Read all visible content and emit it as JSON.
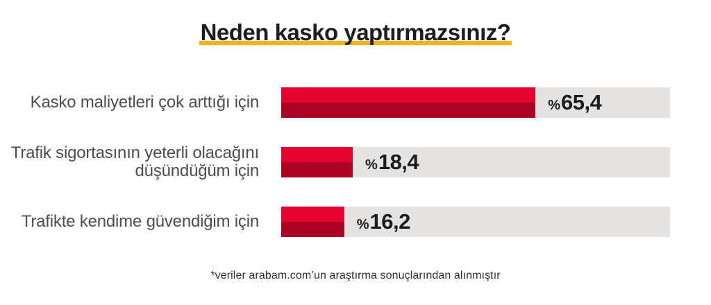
{
  "title": "Neden kasko yaptırmazsınız?",
  "footnote": "*veriler arabam.com’un araştırma sonuçlarından alınmıştır",
  "colors": {
    "bar-top": "#e40230",
    "bar-bottom": "#ab0226",
    "track": "#e4e3e1",
    "underline": "#f0b414",
    "title-color": "#1d1d1b",
    "label-color": "#4c4d4f",
    "value-color": "#1c1c1e",
    "footnote-color": "#2e2e2e",
    "bg": "#ffffff"
  },
  "bars": [
    {
      "label": "Kasko maliyetleri çok arttığı için",
      "percent": 65.4,
      "value_prefix": "%",
      "value_text": "65,4"
    },
    {
      "label": "Trafik sigortasının yeterli olacağını\ndüşündüğüm için",
      "percent": 18.4,
      "value_prefix": "%",
      "value_text": "18,4"
    },
    {
      "label": "Trafikte kendime güvendiğim için",
      "percent": 16.2,
      "value_prefix": "%",
      "value_text": "16,2"
    }
  ],
  "chart_data": {
    "type": "bar",
    "orientation": "horizontal",
    "title": "Neden kasko yaptırmazsınız?",
    "categories": [
      "Kasko maliyetleri çok arttığı için",
      "Trafik sigortasının yeterli olacağını düşündüğüm için",
      "Trafikte kendime güvendiğim için"
    ],
    "values": [
      65.4,
      18.4,
      16.2
    ],
    "value_labels": [
      "%65,4",
      "%18,4",
      "%16,2"
    ],
    "unit": "percent",
    "xlim": [
      0,
      100
    ],
    "grid": false,
    "legend": false,
    "bar_color": "#e40230",
    "track_color": "#e4e3e1",
    "source_note": "*veriler arabam.com’un araştırma sonuçlarından alınmıştır"
  }
}
